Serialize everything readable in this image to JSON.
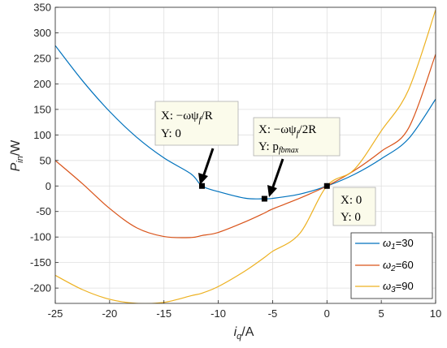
{
  "chart_data": {
    "type": "line",
    "title": "",
    "xlabel": {
      "main": "i",
      "sub": "q",
      "unit": "/A"
    },
    "ylabel": {
      "main": "P",
      "sub": "in",
      "unit": "/W"
    },
    "xlim": [
      -25,
      10
    ],
    "ylim": [
      -230,
      350
    ],
    "xticks": [
      -25,
      -20,
      -15,
      -10,
      -5,
      0,
      5,
      10
    ],
    "yticks": [
      -200,
      -150,
      -100,
      -50,
      0,
      50,
      100,
      150,
      200,
      250,
      300,
      350
    ],
    "grid": true,
    "x": [
      -25,
      -22.5,
      -20,
      -17.5,
      -15,
      -12.5,
      -11.5,
      -10,
      -7.5,
      -5.75,
      -5,
      -2.5,
      0,
      2.5,
      5,
      7.5,
      10
    ],
    "series": [
      {
        "name_main": "ω",
        "name_sub": "1",
        "name_value": "=30",
        "color": "#0072bd",
        "values": [
          275,
          206.3,
          146,
          95.3,
          55,
          23.5,
          0,
          -11,
          -24,
          -25,
          -24.3,
          -16,
          0,
          22.5,
          53.3,
          92.4,
          170
        ]
      },
      {
        "name_main": "ω",
        "name_sub": "2",
        "name_value": "=60",
        "color": "#d95319",
        "values": [
          50,
          4.5,
          -44,
          -82,
          -99,
          -101,
          -97,
          -91,
          -70,
          -53,
          -45,
          -24,
          0,
          30,
          68,
          113,
          258
        ]
      },
      {
        "name_main": "ω",
        "name_sub": "3",
        "name_value": "=90",
        "color": "#edb120",
        "values": [
          -175,
          -203,
          -222,
          -230,
          -228,
          -215,
          -210,
          -197,
          -166,
          -140,
          -128,
          -93,
          0,
          32,
          108,
          188,
          345
        ]
      }
    ],
    "markers": [
      {
        "x": -11.5,
        "y": 0
      },
      {
        "x": -5.75,
        "y": -25
      },
      {
        "x": 0,
        "y": 0
      }
    ],
    "annotations": [
      {
        "line1": "X: −ωψ",
        "line1_sub": "f",
        "line1_tail": "/R",
        "line2": "Y: 0",
        "line2_sub": ""
      },
      {
        "line1": "X: −ωψ",
        "line1_sub": "f",
        "line1_tail": "/2R",
        "line2": "Y: p",
        "line2_sub": "fbmax"
      },
      {
        "line1": "X: 0",
        "line1_sub": "",
        "line1_tail": "",
        "line2": "Y: 0",
        "line2_sub": ""
      }
    ],
    "legend_position": "bottom-right"
  }
}
